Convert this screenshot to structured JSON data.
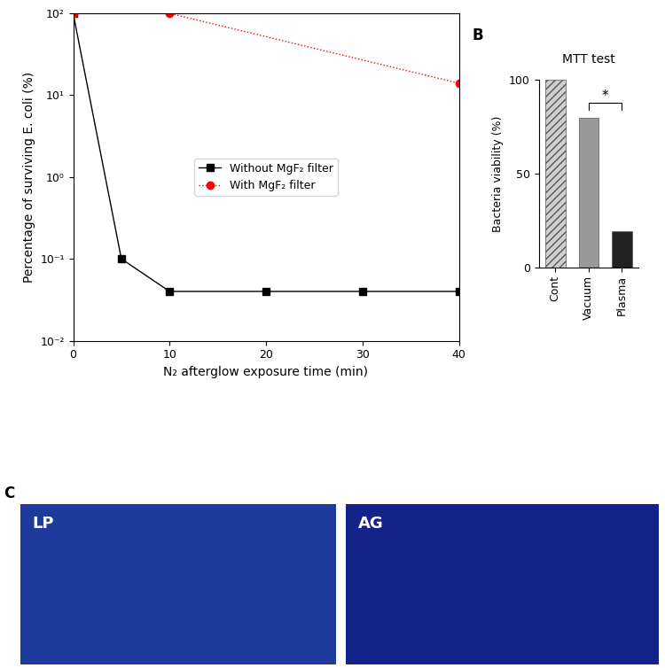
{
  "chart_data": [
    {
      "type": "line",
      "x_label": "N₂ afterglow exposure time (min)",
      "y_label": "Percentage of surviving E. coli (%)",
      "log": "y",
      "grid": false,
      "legend": "center",
      "xlim": [
        0,
        40
      ],
      "xticks": [
        0,
        10,
        20,
        30,
        40
      ],
      "ylim": [
        0.01,
        100
      ],
      "yticks": [
        {
          "value": 0.01,
          "label": "10⁻²"
        },
        {
          "value": 0.1,
          "label": "10⁻¹"
        },
        {
          "value": 1,
          "label": "10⁰"
        },
        {
          "value": 10,
          "label": "10¹"
        },
        {
          "value": 100,
          "label": "10²"
        }
      ],
      "series": [
        {
          "name": "Without MgF₂ filter",
          "color": "#000000",
          "marker": "square",
          "line_style": "solid",
          "x": [
            0,
            5,
            10,
            20,
            30,
            40
          ],
          "values": [
            100,
            0.1,
            0.04,
            0.04,
            0.04,
            0.04
          ]
        },
        {
          "name": "With MgF₂ filter",
          "color": "#ff0000",
          "marker": "circle",
          "line_style": "dotted",
          "x": [
            0,
            10,
            40
          ],
          "values": [
            100,
            100,
            14
          ]
        }
      ]
    },
    {
      "type": "bar",
      "panel": "B",
      "title": "MTT test",
      "y_label": "Bacteria viability (%)",
      "categories": [
        "Cont",
        "Vacuum",
        "Plasma"
      ],
      "values": [
        100,
        80,
        19
      ],
      "colors": [
        "#d0d0d0",
        "#999999",
        "#222222"
      ],
      "ylim": [
        0,
        100
      ],
      "yticks": [
        0,
        50,
        100
      ],
      "grid": false,
      "annotations": [
        {
          "text": "*",
          "between": [
            "Vacuum",
            "Plasma"
          ]
        }
      ]
    }
  ],
  "images": {
    "panel": "C",
    "labels": [
      "LP",
      "AG"
    ]
  }
}
